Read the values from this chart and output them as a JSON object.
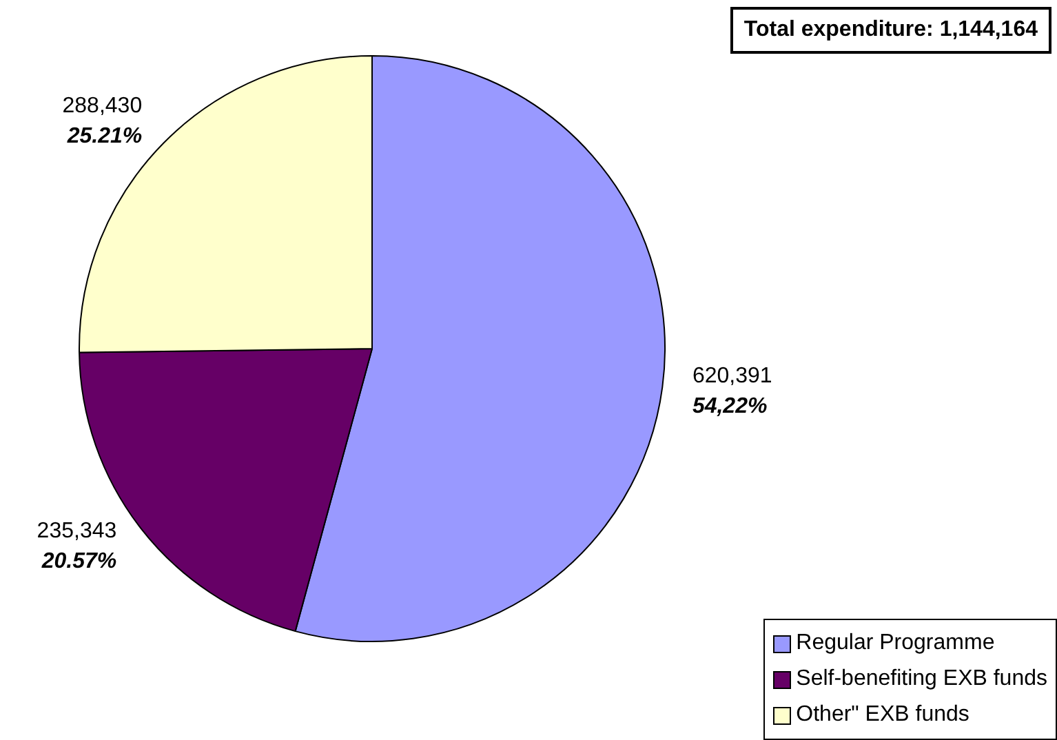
{
  "chart_data": {
    "type": "pie",
    "categories": [
      "Regular Programme",
      "Self-benefiting EXB funds",
      "Other\" EXB funds"
    ],
    "values": [
      620391,
      235343,
      288430
    ],
    "colors": [
      "#9999ff",
      "#660066",
      "#ffffcc"
    ],
    "value_labels": [
      "620,391\n54,22%",
      "235,343\n20.57%",
      "288,430\n25.21%"
    ],
    "annotations": [
      "Total expenditure: 1,144,164"
    ],
    "legend": "bottom right"
  }
}
